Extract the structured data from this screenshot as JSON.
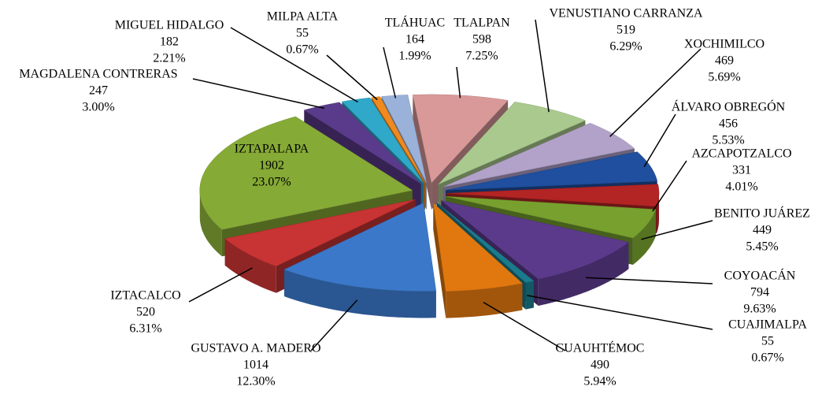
{
  "chart_data": {
    "type": "pie3d",
    "categories": [
      "ÁLVARO OBREGÓN",
      "AZCAPOTZALCO",
      "BENITO JUÁREZ",
      "COYOACÁN",
      "CUAJIMALPA",
      "CUAUHTÉMOC",
      "GUSTAVO A. MADERO",
      "IZTACALCO",
      "IZTAPALAPA",
      "MAGDALENA CONTRERAS",
      "MIGUEL HIDALGO",
      "MILPA ALTA",
      "TLÁHUAC",
      "TLALPAN",
      "VENUSTIANO CARRANZA",
      "XOCHIMILCO"
    ],
    "values": [
      456,
      331,
      449,
      794,
      55,
      490,
      1014,
      520,
      1902,
      247,
      182,
      55,
      164,
      598,
      519,
      469
    ],
    "percent_labels": [
      "5.53%",
      "4.01%",
      "5.45%",
      "9.63%",
      "0.67%",
      "5.94%",
      "12.30%",
      "6.31%",
      "23.07%",
      "3.00%",
      "2.21%",
      "0.67%",
      "1.99%",
      "7.25%",
      "6.29%",
      "5.69%"
    ],
    "colors": [
      "#1f4f9e",
      "#b32424",
      "#77a02e",
      "#5b3a8c",
      "#1b7b8c",
      "#e0780f",
      "#3b78c9",
      "#c83333",
      "#86aa36",
      "#5a3b8b",
      "#2fa8c9",
      "#f08a1f",
      "#9ab1d9",
      "#d99999",
      "#aac98e",
      "#b2a2ca"
    ]
  }
}
